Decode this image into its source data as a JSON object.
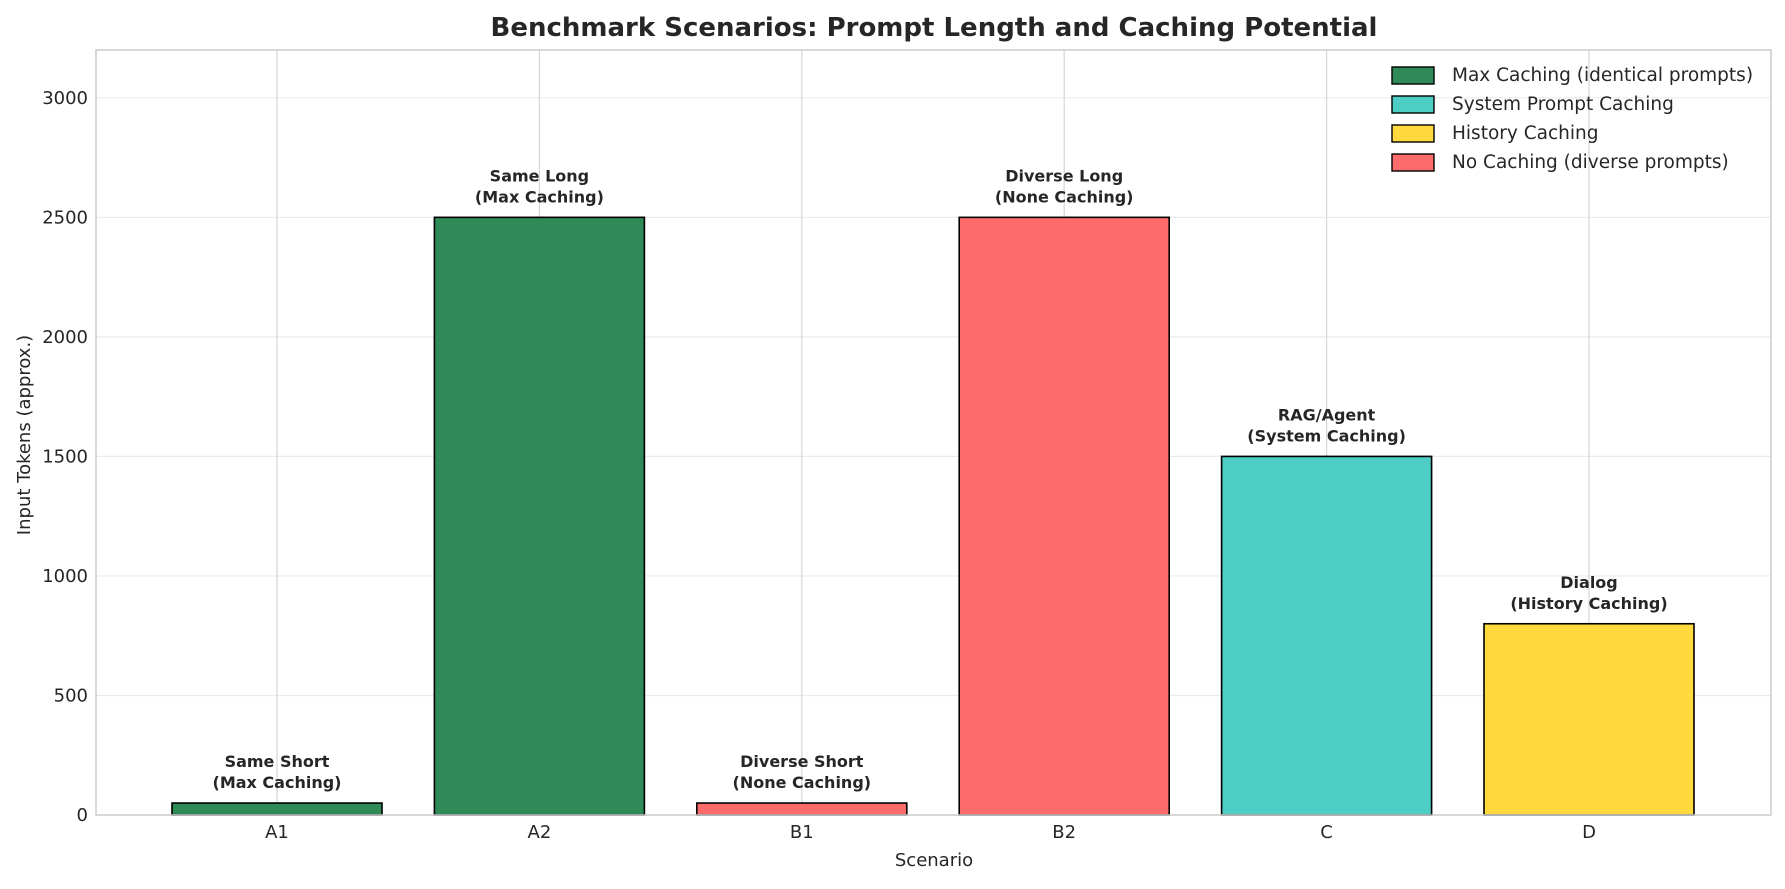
{
  "chart_data": {
    "type": "bar",
    "title": "Benchmark Scenarios: Prompt Length and Caching Potential",
    "xlabel": "Scenario",
    "ylabel": "Input Tokens (approx.)",
    "ylim": [
      0,
      3200
    ],
    "yticks": [
      0,
      500,
      1000,
      1500,
      2000,
      2500,
      3000
    ],
    "grid": true,
    "legend_position": "top-right",
    "categories": [
      "A1",
      "A2",
      "B1",
      "B2",
      "C",
      "D"
    ],
    "values": [
      50,
      2500,
      50,
      2500,
      1500,
      800
    ],
    "bar_groups": [
      "max",
      "max",
      "none",
      "none",
      "system",
      "history"
    ],
    "annotations": [
      [
        "Same Short",
        "(Max Caching)"
      ],
      [
        "Same Long",
        "(Max Caching)"
      ],
      [
        "Diverse Short",
        "(None Caching)"
      ],
      [
        "Diverse Long",
        "(None Caching)"
      ],
      [
        "RAG/Agent",
        "(System Caching)"
      ],
      [
        "Dialog",
        "(History Caching)"
      ]
    ],
    "legend": [
      {
        "key": "max",
        "label": "Max Caching (identical prompts)",
        "color": "#2E8B57"
      },
      {
        "key": "system",
        "label": "System Prompt Caching",
        "color": "#4ECDC4"
      },
      {
        "key": "history",
        "label": "History Caching",
        "color": "#FFD93D"
      },
      {
        "key": "none",
        "label": "No Caching (diverse prompts)",
        "color": "#FF6B6B"
      }
    ]
  }
}
